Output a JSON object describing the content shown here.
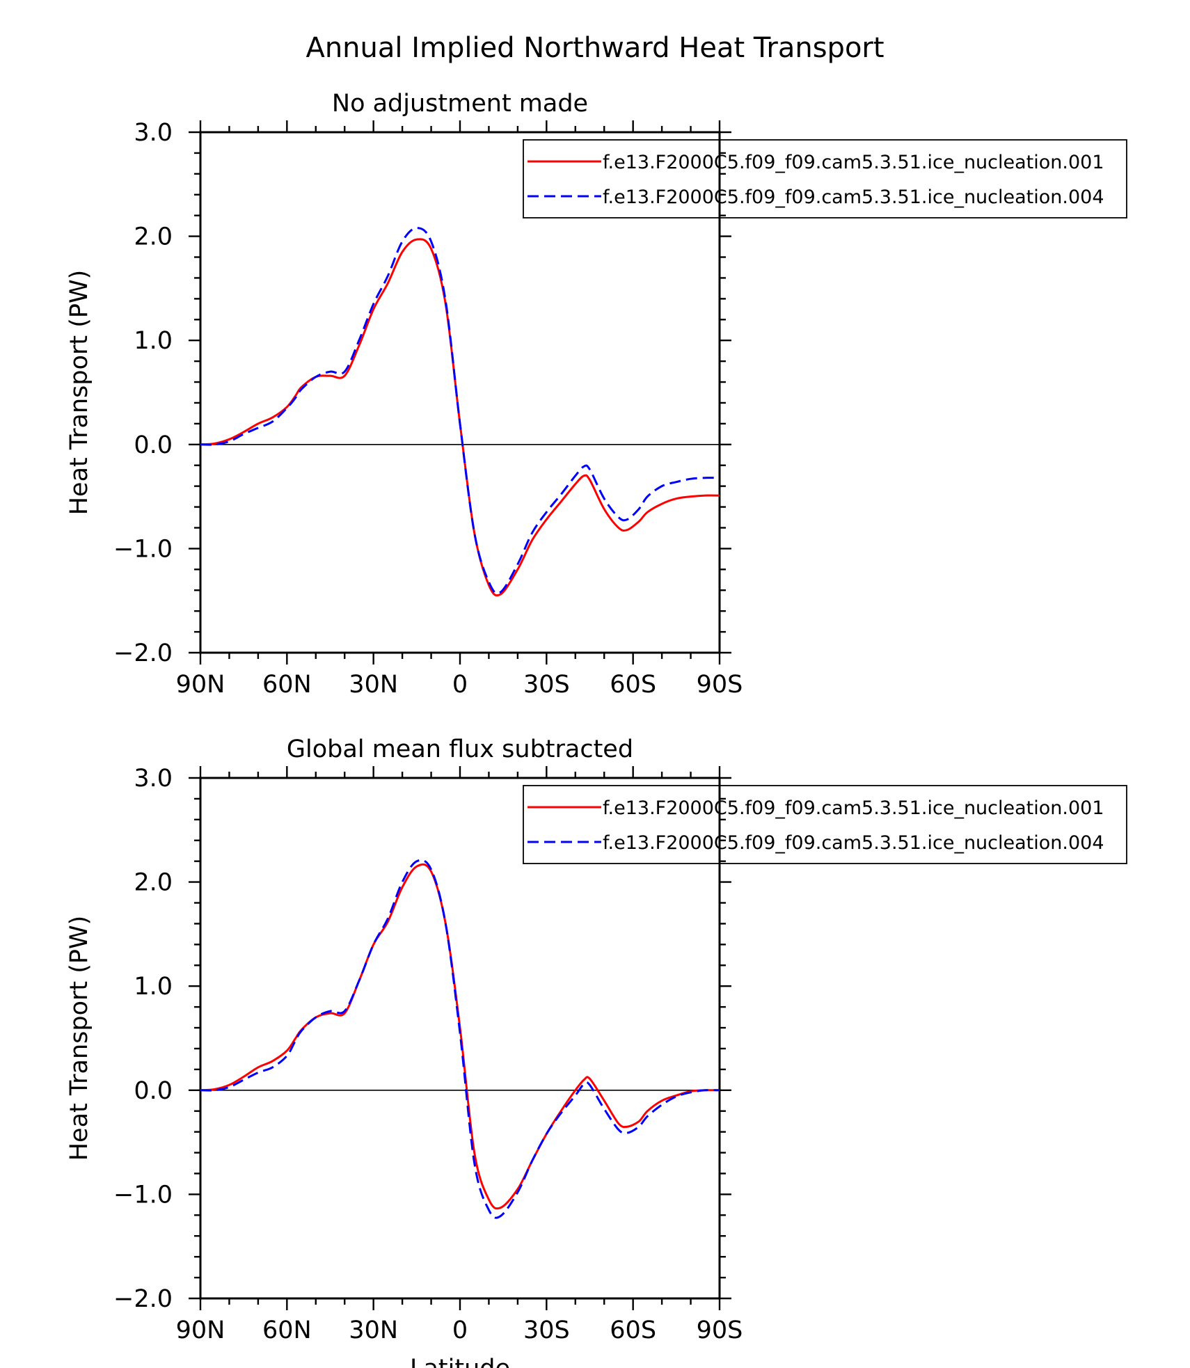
{
  "figure_title": "Annual Implied Northward Heat Transport",
  "colors": {
    "series1": "#ff0000",
    "series2": "#0000ff",
    "axis": "#000000"
  },
  "chart_data": [
    {
      "type": "line",
      "title": "No adjustment made",
      "xlabel": "",
      "ylabel": "Heat Transport (PW)",
      "xlim": [
        -90,
        90
      ],
      "ylim": [
        -2.0,
        3.0
      ],
      "x_direction": "reversed",
      "x_ticks": [
        -90,
        -60,
        -30,
        0,
        30,
        60,
        90
      ],
      "x_tick_labels": [
        "90N",
        "60N",
        "30N",
        "0",
        "30S",
        "60S",
        "90S"
      ],
      "y_ticks": [
        -2.0,
        -1.0,
        0.0,
        1.0,
        2.0,
        3.0
      ],
      "y_tick_labels": [
        "−2.0",
        "−1.0",
        "0.0",
        "1.0",
        "2.0",
        "3.0"
      ],
      "zero_line": true,
      "grid": false,
      "legend_position": "top-right",
      "x": [
        -90,
        -85,
        -80,
        -75,
        -70,
        -65,
        -60,
        -57,
        -55,
        -50,
        -45,
        -40,
        -35,
        -30,
        -25,
        -20,
        -15,
        -10,
        -5,
        0,
        5,
        10,
        14,
        20,
        25,
        30,
        35,
        40,
        43,
        45,
        50,
        55,
        58,
        62,
        65,
        70,
        75,
        80,
        85,
        90
      ],
      "series": [
        {
          "name": "f.e13.F2000C5.f09_f09.cam5.3.51.ice_nucleation.001",
          "style": "solid",
          "color": "#ff0000",
          "values": [
            0.0,
            0.01,
            0.05,
            0.12,
            0.2,
            0.26,
            0.36,
            0.47,
            0.55,
            0.65,
            0.66,
            0.66,
            0.95,
            1.3,
            1.55,
            1.85,
            1.97,
            1.88,
            1.35,
            0.2,
            -0.85,
            -1.35,
            -1.44,
            -1.2,
            -0.92,
            -0.72,
            -0.55,
            -0.38,
            -0.3,
            -0.34,
            -0.62,
            -0.8,
            -0.82,
            -0.74,
            -0.65,
            -0.57,
            -0.52,
            -0.5,
            -0.49,
            -0.49
          ]
        },
        {
          "name": "f.e13.F2000C5.f09_f09.cam5.3.51.ice_nucleation.004",
          "style": "dashed",
          "color": "#0000ff",
          "values": [
            0.0,
            0.0,
            0.03,
            0.1,
            0.16,
            0.22,
            0.35,
            0.45,
            0.53,
            0.65,
            0.7,
            0.7,
            1.0,
            1.35,
            1.62,
            1.95,
            2.08,
            1.95,
            1.38,
            0.2,
            -0.85,
            -1.32,
            -1.42,
            -1.15,
            -0.85,
            -0.65,
            -0.48,
            -0.3,
            -0.21,
            -0.24,
            -0.52,
            -0.7,
            -0.72,
            -0.62,
            -0.5,
            -0.4,
            -0.36,
            -0.33,
            -0.32,
            -0.32
          ]
        }
      ]
    },
    {
      "type": "line",
      "title": "Global mean flux subtracted",
      "xlabel": "Latitude",
      "ylabel": "Heat Transport (PW)",
      "xlim": [
        -90,
        90
      ],
      "ylim": [
        -2.0,
        3.0
      ],
      "x_direction": "reversed",
      "x_ticks": [
        -90,
        -60,
        -30,
        0,
        30,
        60,
        90
      ],
      "x_tick_labels": [
        "90N",
        "60N",
        "30N",
        "0",
        "30S",
        "60S",
        "90S"
      ],
      "y_ticks": [
        -2.0,
        -1.0,
        0.0,
        1.0,
        2.0,
        3.0
      ],
      "y_tick_labels": [
        "−2.0",
        "−1.0",
        "0.0",
        "1.0",
        "2.0",
        "3.0"
      ],
      "zero_line": true,
      "grid": false,
      "legend_position": "top-right",
      "x": [
        -90,
        -85,
        -80,
        -75,
        -70,
        -65,
        -60,
        -57,
        -55,
        -50,
        -45,
        -40,
        -35,
        -30,
        -25,
        -20,
        -15,
        -10,
        -5,
        0,
        5,
        10,
        14,
        20,
        25,
        30,
        35,
        40,
        43,
        45,
        50,
        55,
        58,
        62,
        65,
        70,
        75,
        80,
        85,
        90
      ],
      "series": [
        {
          "name": "f.e13.F2000C5.f09_f09.cam5.3.51.ice_nucleation.001",
          "style": "solid",
          "color": "#ff0000",
          "values": [
            0.0,
            0.01,
            0.05,
            0.13,
            0.22,
            0.28,
            0.38,
            0.5,
            0.58,
            0.7,
            0.74,
            0.74,
            1.05,
            1.4,
            1.62,
            1.95,
            2.15,
            2.1,
            1.6,
            0.6,
            -0.6,
            -1.05,
            -1.13,
            -0.95,
            -0.68,
            -0.42,
            -0.2,
            0.0,
            0.1,
            0.11,
            -0.1,
            -0.32,
            -0.35,
            -0.3,
            -0.2,
            -0.1,
            -0.05,
            -0.01,
            0.0,
            0.0
          ]
        },
        {
          "name": "f.e13.F2000C5.f09_f09.cam5.3.51.ice_nucleation.004",
          "style": "dashed",
          "color": "#0000ff",
          "values": [
            0.0,
            0.0,
            0.03,
            0.1,
            0.17,
            0.22,
            0.33,
            0.48,
            0.57,
            0.7,
            0.76,
            0.76,
            1.05,
            1.4,
            1.65,
            2.0,
            2.2,
            2.12,
            1.6,
            0.55,
            -0.7,
            -1.15,
            -1.21,
            -0.98,
            -0.68,
            -0.42,
            -0.22,
            -0.05,
            0.06,
            0.05,
            -0.18,
            -0.38,
            -0.41,
            -0.35,
            -0.25,
            -0.14,
            -0.06,
            -0.02,
            0.0,
            0.0
          ]
        }
      ]
    }
  ]
}
